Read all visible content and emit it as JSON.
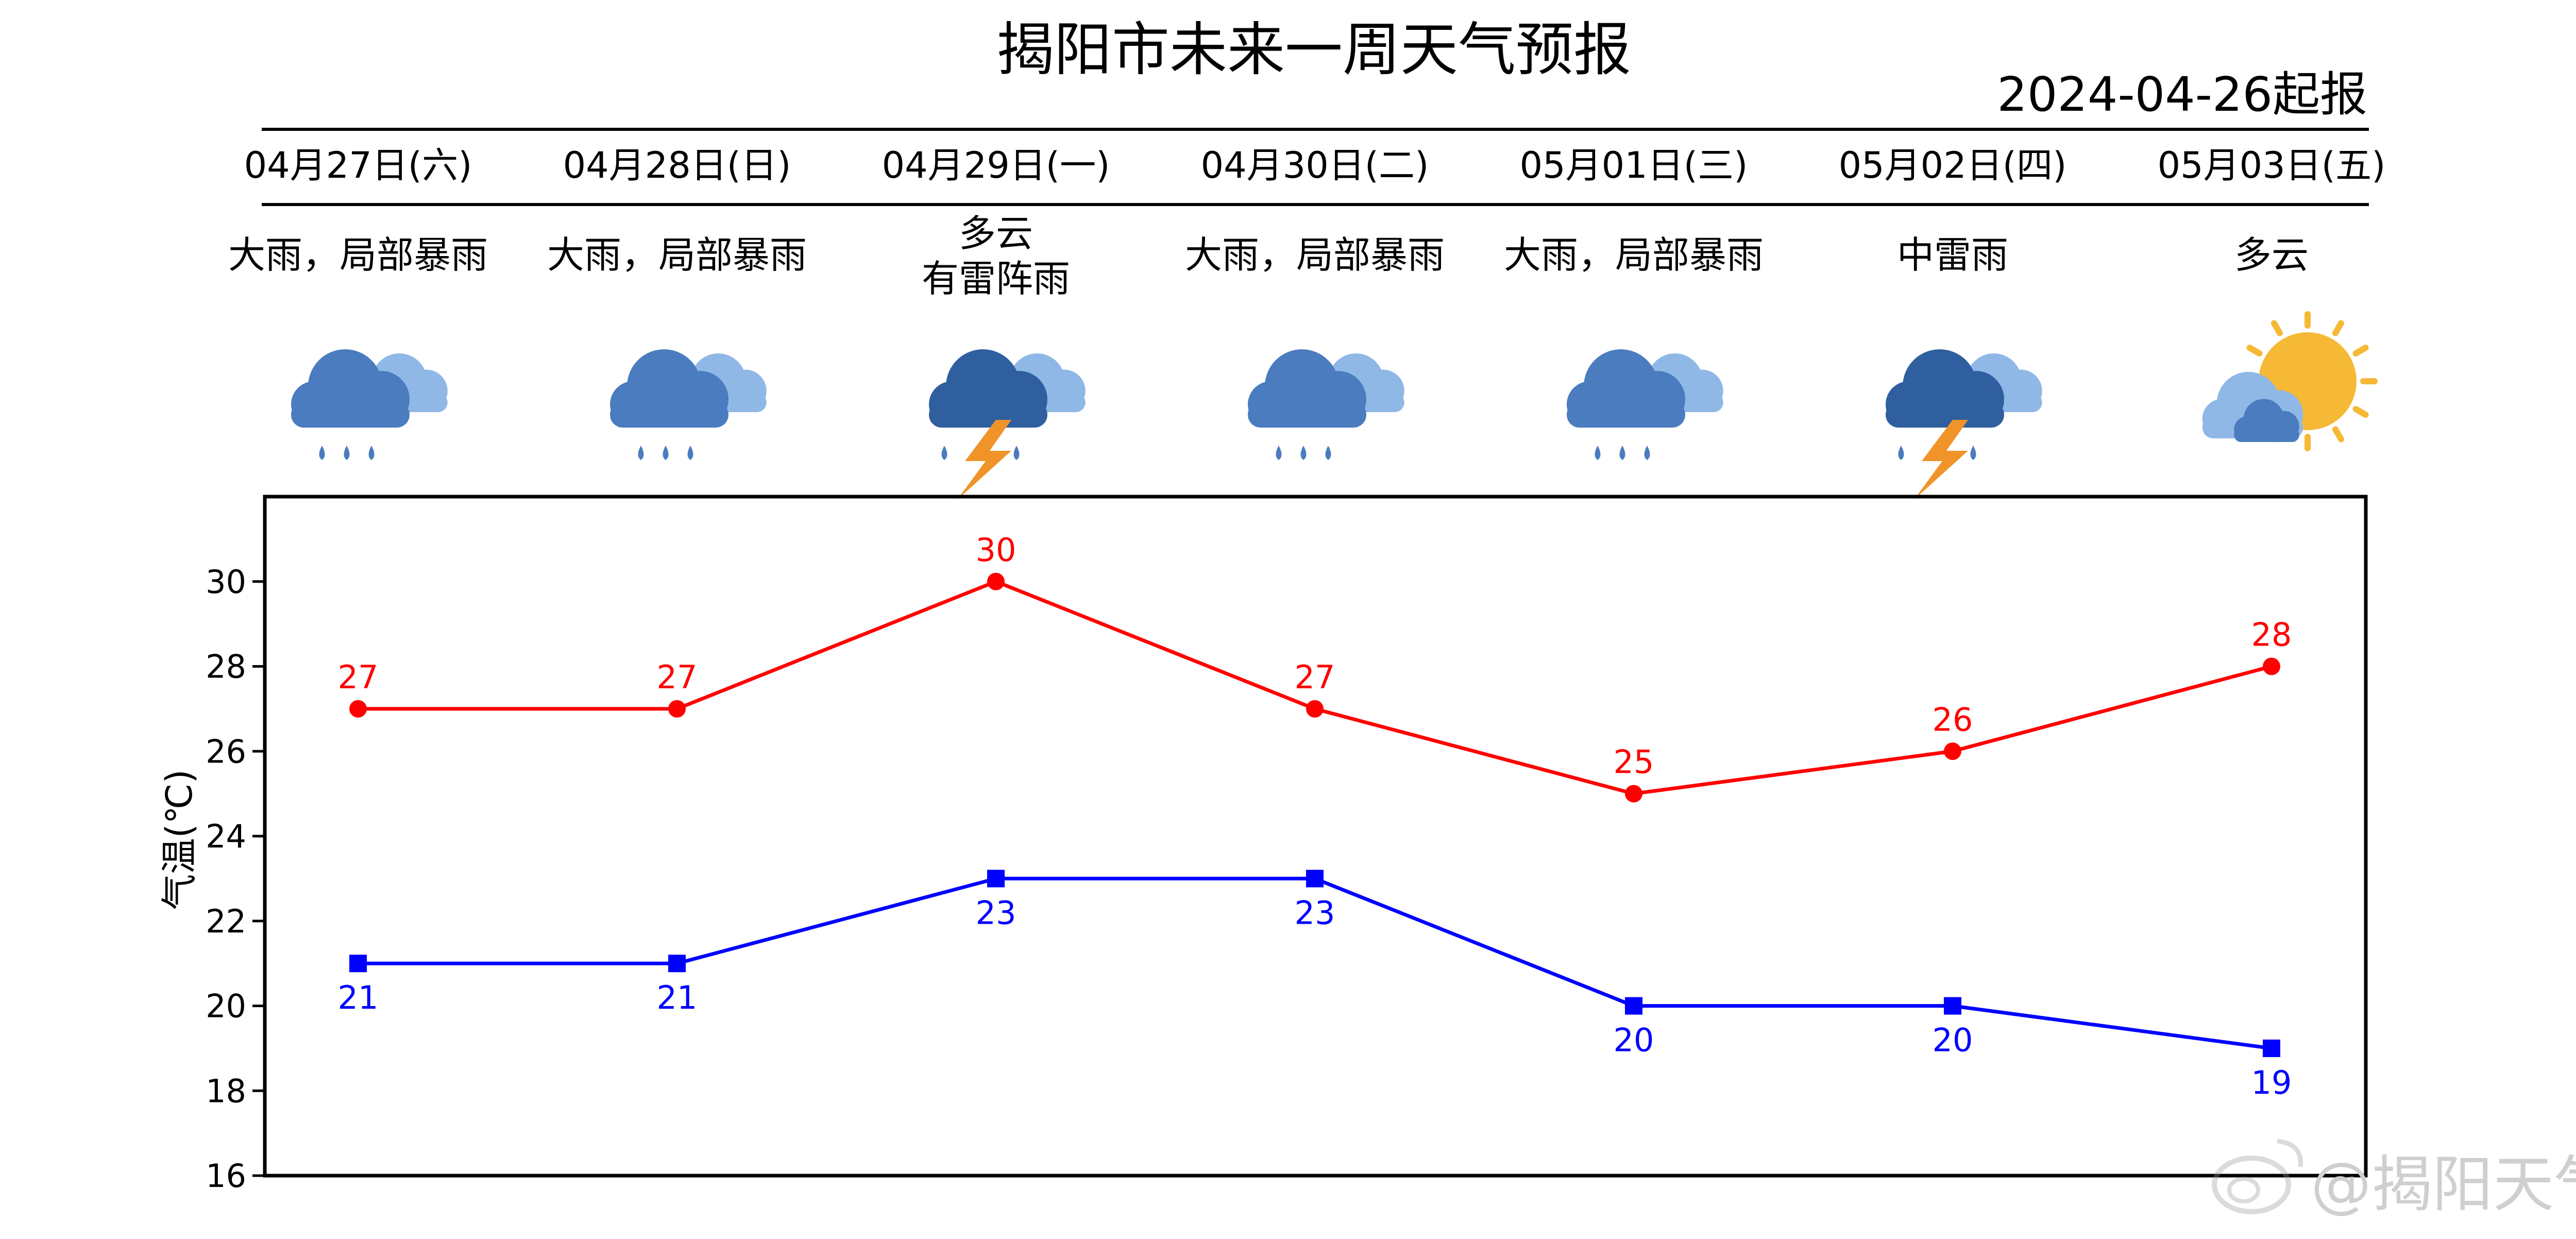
{
  "page": {
    "title": "揭阳市未来一周天气预报",
    "issue_date": "2024-04-26起报",
    "watermark": "@揭阳天气"
  },
  "forecast": {
    "days": [
      {
        "date": "04月27日(六)",
        "weather_lines": [
          "大雨，局部暴雨"
        ],
        "icon": "heavy-rain-icon"
      },
      {
        "date": "04月28日(日)",
        "weather_lines": [
          "大雨，局部暴雨"
        ],
        "icon": "heavy-rain-icon"
      },
      {
        "date": "04月29日(一)",
        "weather_lines": [
          "多云",
          "有雷阵雨"
        ],
        "icon": "thunderstorm-icon"
      },
      {
        "date": "04月30日(二)",
        "weather_lines": [
          "大雨，局部暴雨"
        ],
        "icon": "heavy-rain-icon"
      },
      {
        "date": "05月01日(三)",
        "weather_lines": [
          "大雨，局部暴雨"
        ],
        "icon": "heavy-rain-icon"
      },
      {
        "date": "05月02日(四)",
        "weather_lines": [
          "中雷雨"
        ],
        "icon": "thunderstorm-icon"
      },
      {
        "date": "05月03日(五)",
        "weather_lines": [
          "多云"
        ],
        "icon": "partly-cloudy-icon"
      }
    ]
  },
  "colors": {
    "high": "#ff0000",
    "low": "#0000ff",
    "cloud_dark": "#2f5f9e",
    "cloud_mid": "#4a7cbf",
    "cloud_light": "#8fb8e6",
    "bolt": "#f0942a",
    "sun": "#f5b935"
  },
  "chart_data": {
    "type": "line",
    "categories": [
      "04月27日(六)",
      "04月28日(日)",
      "04月29日(一)",
      "04月30日(二)",
      "05月01日(三)",
      "05月02日(四)",
      "05月03日(五)"
    ],
    "series": [
      {
        "key": "high",
        "values": [
          27,
          27,
          30,
          27,
          25,
          26,
          28
        ],
        "marker": "circle"
      },
      {
        "key": "low",
        "values": [
          21,
          21,
          23,
          23,
          20,
          20,
          19
        ],
        "marker": "square"
      }
    ],
    "ylabel": "气温(℃)",
    "ylim": [
      16,
      32
    ],
    "yticks": [
      16,
      18,
      20,
      22,
      24,
      26,
      28,
      30
    ],
    "grid": false,
    "data_labels": true
  }
}
